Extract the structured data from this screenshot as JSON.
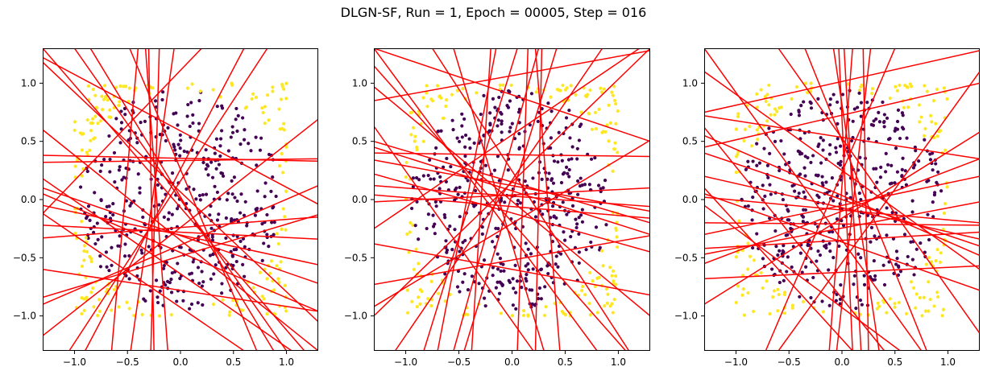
{
  "figure": {
    "title": "DLGN-SF, Run = 1, Epoch = 00005, Step = 016"
  },
  "colors": {
    "class0": "#440154",
    "class1": "#fde725",
    "lines": "#ff0000",
    "axes": "#000000"
  },
  "chart_data": [
    {
      "type": "scatter",
      "subtype": "decision-hyperplanes",
      "title": "",
      "xlabel": "",
      "ylabel": "",
      "xlim": [
        -1.3,
        1.3
      ],
      "ylim": [
        -1.3,
        1.3
      ],
      "xticks": [
        "−1.0",
        "−0.5",
        "0.0",
        "0.5",
        "1.0"
      ],
      "yticks": [
        "−1.0",
        "−0.5",
        "0.0",
        "0.5",
        "1.0"
      ],
      "grid": false,
      "point_classes": [
        "inside circle (class 0)",
        "outside circle (class 1)"
      ],
      "lines": [
        [
          [
            -1.3,
            1.22
          ],
          [
            1.3,
            -0.04
          ]
        ],
        [
          [
            -1.3,
            0.6
          ],
          [
            1.3,
            -1.3
          ]
        ],
        [
          [
            -1.3,
            0.38
          ],
          [
            1.3,
            0.33
          ]
        ],
        [
          [
            -1.3,
            0.32
          ],
          [
            1.3,
            0.35
          ]
        ],
        [
          [
            -1.3,
            0.1
          ],
          [
            1.3,
            -0.72
          ]
        ],
        [
          [
            -1.3,
            -0.05
          ],
          [
            1.3,
            -0.56
          ]
        ],
        [
          [
            -1.3,
            -0.22
          ],
          [
            1.3,
            -0.34
          ]
        ],
        [
          [
            -1.3,
            -0.33
          ],
          [
            1.3,
            -0.15
          ]
        ],
        [
          [
            -1.3,
            -0.9
          ],
          [
            1.3,
            0.12
          ]
        ],
        [
          [
            -1.3,
            -1.17
          ],
          [
            1.3,
            0.69
          ]
        ],
        [
          [
            -1.3,
            -0.12
          ],
          [
            0.6,
            -1.3
          ]
        ],
        [
          [
            -1.3,
            0.18
          ],
          [
            1.05,
            -1.3
          ]
        ],
        [
          [
            -1.3,
            1.3
          ],
          [
            1.17,
            -1.3
          ]
        ],
        [
          [
            -1.3,
            1.18
          ],
          [
            1.3,
            -1.05
          ]
        ],
        [
          [
            -1.0,
            1.3
          ],
          [
            1.0,
            -1.3
          ]
        ],
        [
          [
            -0.4,
            1.3
          ],
          [
            -0.65,
            -1.3
          ]
        ],
        [
          [
            -0.3,
            1.3
          ],
          [
            -0.25,
            -1.3
          ]
        ],
        [
          [
            -0.2,
            1.3
          ],
          [
            -0.28,
            -1.3
          ]
        ],
        [
          [
            -0.33,
            1.3
          ],
          [
            -0.12,
            -1.3
          ]
        ],
        [
          [
            -0.06,
            1.3
          ],
          [
            -0.47,
            -1.3
          ]
        ],
        [
          [
            0.6,
            1.3
          ],
          [
            -0.9,
            -1.3
          ]
        ],
        [
          [
            0.82,
            1.3
          ],
          [
            -1.05,
            -1.3
          ]
        ],
        [
          [
            -0.85,
            1.3
          ],
          [
            0.88,
            -1.3
          ]
        ],
        [
          [
            -0.48,
            1.3
          ],
          [
            0.72,
            -1.3
          ]
        ],
        [
          [
            0.2,
            1.3
          ],
          [
            -1.3,
            -0.12
          ]
        ],
        [
          [
            -1.3,
            -0.6
          ],
          [
            1.3,
            -0.96
          ]
        ],
        [
          [
            -1.3,
            0.05
          ],
          [
            1.3,
            -0.96
          ]
        ],
        [
          [
            -1.3,
            -0.84
          ],
          [
            1.3,
            -0.13
          ]
        ]
      ]
    },
    {
      "type": "scatter",
      "subtype": "decision-hyperplanes",
      "title": "",
      "xlabel": "",
      "ylabel": "",
      "xlim": [
        -1.3,
        1.3
      ],
      "ylim": [
        -1.3,
        1.3
      ],
      "xticks": [
        "−1.0",
        "−0.5",
        "0.0",
        "0.5",
        "1.0"
      ],
      "yticks": [
        "−1.0",
        "−0.5",
        "0.0",
        "0.5",
        "1.0"
      ],
      "grid": false,
      "point_classes": [
        "inside circle (class 0)",
        "outside circle (class 1)"
      ],
      "lines": [
        [
          [
            -1.3,
            0.85
          ],
          [
            1.3,
            1.28
          ]
        ],
        [
          [
            -1.3,
            0.5
          ],
          [
            1.3,
            -0.2
          ]
        ],
        [
          [
            -1.3,
            0.4
          ],
          [
            1.3,
            0.37
          ]
        ],
        [
          [
            -1.3,
            0.34
          ],
          [
            1.3,
            -0.1
          ]
        ],
        [
          [
            -1.3,
            0.12
          ],
          [
            1.3,
            -0.06
          ]
        ],
        [
          [
            -1.3,
            0.04
          ],
          [
            1.3,
            -0.16
          ]
        ],
        [
          [
            -1.3,
            -0.02
          ],
          [
            1.3,
            0.1
          ]
        ],
        [
          [
            -1.3,
            -0.73
          ],
          [
            1.3,
            -0.31
          ]
        ],
        [
          [
            -1.3,
            -0.92
          ],
          [
            1.3,
            0.51
          ]
        ],
        [
          [
            -1.3,
            0.63
          ],
          [
            0.2,
            -1.3
          ]
        ],
        [
          [
            -1.3,
            0.97
          ],
          [
            1.3,
            -1.0
          ]
        ],
        [
          [
            -1.3,
            1.15
          ],
          [
            1.07,
            -1.3
          ]
        ],
        [
          [
            -1.3,
            1.3
          ],
          [
            0.8,
            -1.3
          ]
        ],
        [
          [
            -0.75,
            1.3
          ],
          [
            1.1,
            -1.3
          ]
        ],
        [
          [
            -0.15,
            1.3
          ],
          [
            -0.7,
            -1.3
          ]
        ],
        [
          [
            0.05,
            1.3
          ],
          [
            -0.83,
            -1.3
          ]
        ],
        [
          [
            0.25,
            1.3
          ],
          [
            -0.55,
            -1.3
          ]
        ],
        [
          [
            0.42,
            1.3
          ],
          [
            -0.45,
            -1.3
          ]
        ],
        [
          [
            -0.55,
            1.3
          ],
          [
            0.3,
            -1.3
          ]
        ],
        [
          [
            -0.2,
            1.3
          ],
          [
            -0.38,
            -1.3
          ]
        ],
        [
          [
            0.15,
            1.3
          ],
          [
            0.05,
            -1.3
          ]
        ],
        [
          [
            0.22,
            1.3
          ],
          [
            0.45,
            -1.3
          ]
        ],
        [
          [
            0.28,
            1.3
          ],
          [
            0.22,
            -1.3
          ]
        ],
        [
          [
            -1.3,
            1.3
          ],
          [
            1.3,
            0.5
          ]
        ],
        [
          [
            -1.3,
            -1.0
          ],
          [
            1.3,
            1.3
          ]
        ],
        [
          [
            0.85,
            1.3
          ],
          [
            -1.1,
            -1.3
          ]
        ],
        [
          [
            1.2,
            1.3
          ],
          [
            -1.3,
            -0.25
          ]
        ],
        [
          [
            -1.3,
            0.22
          ],
          [
            1.3,
            -0.45
          ]
        ],
        [
          [
            -1.3,
            -0.38
          ],
          [
            1.3,
            -0.82
          ]
        ],
        [
          [
            -1.3,
            0.45
          ],
          [
            1.3,
            -0.3
          ]
        ]
      ]
    },
    {
      "type": "scatter",
      "subtype": "decision-hyperplanes",
      "title": "",
      "xlabel": "",
      "ylabel": "",
      "xlim": [
        -1.3,
        1.3
      ],
      "ylim": [
        -1.3,
        1.3
      ],
      "xticks": [
        "−1.0",
        "−0.5",
        "0.0",
        "0.5",
        "1.0"
      ],
      "yticks": [
        "−1.0",
        "−0.5",
        "0.0",
        "0.5",
        "1.0"
      ],
      "grid": false,
      "point_classes": [
        "inside circle (class 0)",
        "outside circle (class 1)"
      ],
      "lines": [
        [
          [
            -1.3,
            1.1
          ],
          [
            1.3,
            -0.6
          ]
        ],
        [
          [
            -1.3,
            0.75
          ],
          [
            1.3,
            1.28
          ]
        ],
        [
          [
            -1.3,
            0.72
          ],
          [
            1.3,
            0.35
          ]
        ],
        [
          [
            -1.3,
            0.45
          ],
          [
            1.3,
            1.0
          ]
        ],
        [
          [
            -1.3,
            0.02
          ],
          [
            1.3,
            -0.2
          ]
        ],
        [
          [
            -1.3,
            -0.2
          ],
          [
            1.3,
            -0.22
          ]
        ],
        [
          [
            -1.3,
            -0.42
          ],
          [
            1.3,
            -0.28
          ]
        ],
        [
          [
            -1.3,
            -0.47
          ],
          [
            1.3,
            -0.02
          ]
        ],
        [
          [
            -1.3,
            -0.9
          ],
          [
            1.3,
            0.58
          ]
        ],
        [
          [
            -1.3,
            0.05
          ],
          [
            1.3,
            -0.78
          ]
        ],
        [
          [
            -1.3,
            -0.55
          ],
          [
            1.3,
            0.35
          ]
        ],
        [
          [
            -1.3,
            0.4
          ],
          [
            1.3,
            -0.4
          ]
        ],
        [
          [
            -1.3,
            1.3
          ],
          [
            0.75,
            -1.3
          ]
        ],
        [
          [
            -0.6,
            1.3
          ],
          [
            1.3,
            -1.15
          ]
        ],
        [
          [
            -1.3,
            0.1
          ],
          [
            0.1,
            -1.3
          ]
        ],
        [
          [
            -1.3,
            -0.05
          ],
          [
            0.55,
            -1.3
          ]
        ],
        [
          [
            -0.03,
            1.3
          ],
          [
            0.1,
            -1.3
          ]
        ],
        [
          [
            0.02,
            1.3
          ],
          [
            0.18,
            -1.3
          ]
        ],
        [
          [
            0.1,
            1.3
          ],
          [
            -0.12,
            -1.3
          ]
        ],
        [
          [
            0.2,
            1.3
          ],
          [
            0.25,
            -1.3
          ]
        ],
        [
          [
            0.27,
            1.3
          ],
          [
            -0.05,
            -1.3
          ]
        ],
        [
          [
            -0.08,
            1.3
          ],
          [
            0.35,
            -1.3
          ]
        ],
        [
          [
            0.5,
            1.3
          ],
          [
            -0.72,
            -1.3
          ]
        ],
        [
          [
            1.3,
            1.1
          ],
          [
            -0.6,
            -1.3
          ]
        ],
        [
          [
            -1.3,
            0.55
          ],
          [
            1.3,
            -0.48
          ]
        ],
        [
          [
            -1.3,
            -0.68
          ],
          [
            1.3,
            -0.57
          ]
        ],
        [
          [
            -1.3,
            0.2
          ],
          [
            1.3,
            -0.34
          ]
        ],
        [
          [
            -1.3,
            0.62
          ],
          [
            0.4,
            -1.3
          ]
        ],
        [
          [
            -0.35,
            1.3
          ],
          [
            0.8,
            -1.3
          ]
        ],
        [
          [
            -1.3,
            -0.3
          ],
          [
            1.3,
            0.2
          ]
        ]
      ]
    }
  ]
}
